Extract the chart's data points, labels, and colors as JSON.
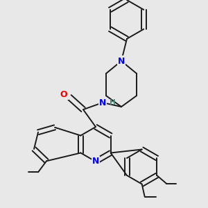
{
  "background_color": "#e8e8e8",
  "bond_color": "#1a1a1a",
  "bond_lw": 1.4,
  "atom_colors": {
    "N": "#0000ee",
    "O": "#ee0000",
    "H": "#4a8a7a",
    "C": "#1a1a1a"
  },
  "font_size_atom": 9,
  "font_size_small": 7.5
}
